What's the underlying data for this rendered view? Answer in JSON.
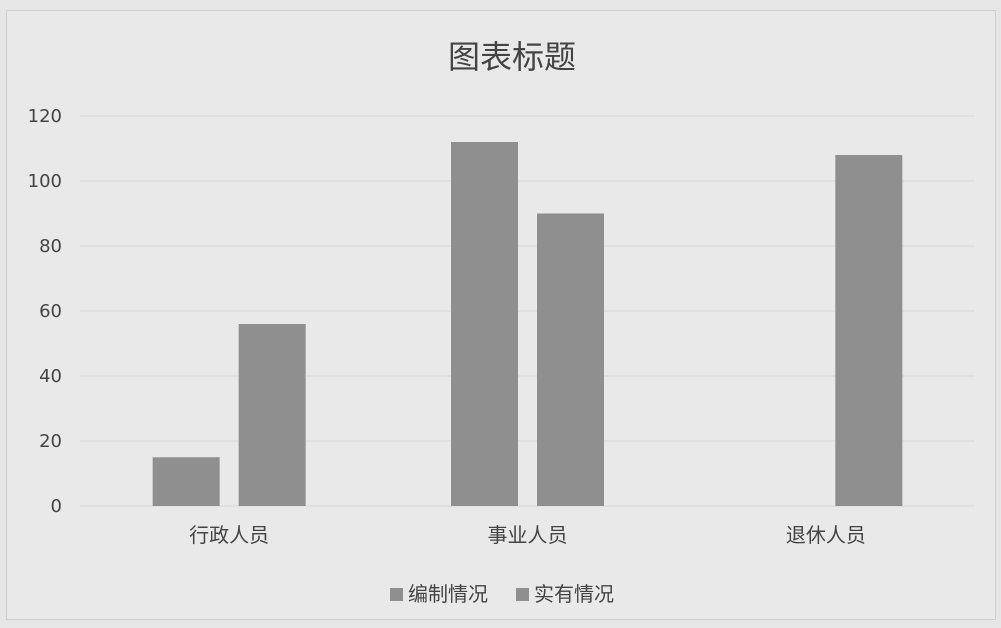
{
  "chart_data": {
    "type": "bar",
    "title": "图表标题",
    "xlabel": "",
    "ylabel": "",
    "categories": [
      "行政人员",
      "事业人员",
      "退休人员"
    ],
    "series": [
      {
        "name": "编制情况",
        "values": [
          15,
          112,
          null
        ]
      },
      {
        "name": "实有情况",
        "values": [
          56,
          90,
          108
        ]
      }
    ],
    "ylim": [
      0,
      120
    ],
    "yticks": [
      0,
      20,
      40,
      60,
      80,
      100,
      120
    ],
    "grid": true,
    "legend_position": "bottom",
    "colors": {
      "series_0": "#8f8f8f",
      "series_1": "#8f8f8f",
      "grid": "#d6d6d6",
      "text": "#444444"
    }
  }
}
